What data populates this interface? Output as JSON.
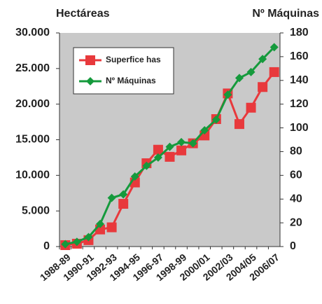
{
  "chart_data": {
    "type": "line",
    "y_label": "Hectáreas",
    "y2_label": "Nº Máquinas",
    "categories": [
      "1988-89",
      null,
      "1990-91",
      null,
      "1992-93",
      null,
      "1994-95",
      null,
      "1996-97",
      null,
      "1998-99",
      null,
      "2000/01",
      null,
      "2002/03",
      null,
      "2004/05",
      null,
      "2006/07"
    ],
    "series": [
      {
        "name": "Superfice has",
        "color": "#e8393c",
        "marker": "square",
        "values": [
          200,
          400,
          900,
          2400,
          2700,
          6000,
          9000,
          11700,
          13600,
          12600,
          13500,
          14500,
          15600,
          17900,
          21500,
          17200,
          19500,
          22400,
          24500
        ]
      },
      {
        "name": "Nº Máquinas",
        "color": "#159a3c",
        "marker": "diamond",
        "axis": "y2",
        "values": [
          2,
          4,
          8,
          19,
          41,
          44,
          59,
          68,
          75,
          84,
          88,
          87,
          98,
          107,
          128,
          142,
          147,
          158,
          168
        ]
      }
    ],
    "ylim": [
      0,
      30000
    ],
    "yticks": [
      0,
      {
        "value": 5000,
        "label": "5.000"
      },
      {
        "value": 10000,
        "label": "10.000"
      },
      {
        "value": 15000,
        "label": "15.000"
      },
      {
        "value": 20000,
        "label": "20.000"
      },
      {
        "value": 25000,
        "label": "25.000"
      },
      {
        "value": 30000,
        "label": "30.000"
      }
    ],
    "y2lim": [
      0,
      180
    ],
    "y2ticks": [
      0,
      20,
      40,
      60,
      80,
      100,
      120,
      140,
      160,
      180
    ],
    "legend": "upper left",
    "grid": false
  }
}
